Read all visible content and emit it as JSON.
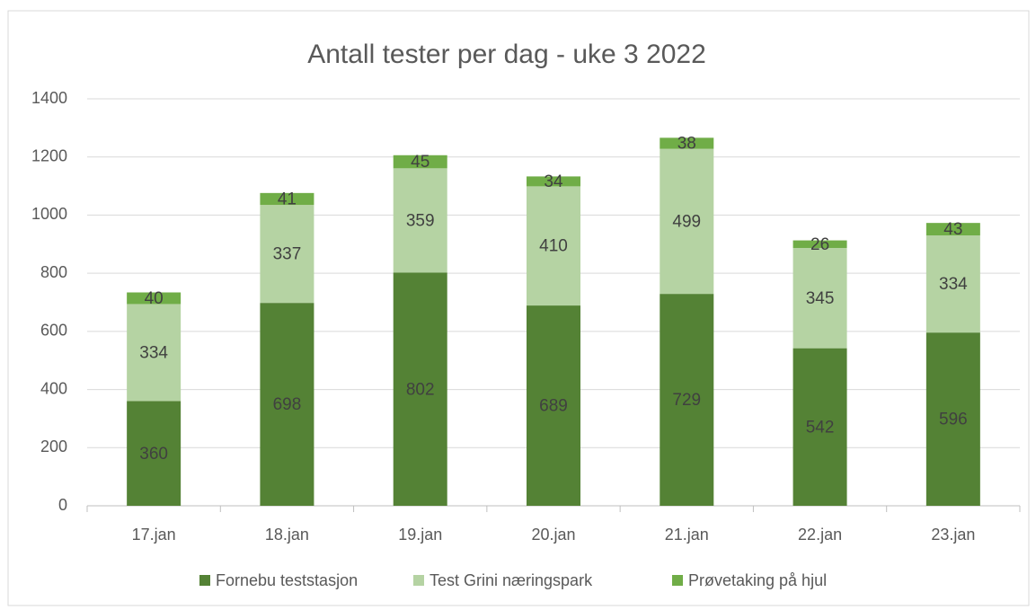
{
  "chart_data": {
    "type": "stacked_bar",
    "title": "Antall tester per dag - uke 3 2022",
    "categories": [
      "17.jan",
      "18.jan",
      "19.jan",
      "20.jan",
      "21.jan",
      "22.jan",
      "23.jan"
    ],
    "series": [
      {
        "name": "Fornebu teststasjon",
        "color": "#548235",
        "values": [
          360,
          698,
          802,
          689,
          729,
          542,
          596
        ]
      },
      {
        "name": "Test Grini næringspark",
        "color": "#b5d3a3",
        "values": [
          334,
          337,
          359,
          410,
          499,
          345,
          334
        ]
      },
      {
        "name": "Prøvetaking på hjul",
        "color": "#70ad47",
        "values": [
          40,
          41,
          45,
          34,
          38,
          26,
          43
        ]
      }
    ],
    "ylim": [
      0,
      1400
    ],
    "yticks": [
      0,
      200,
      400,
      600,
      800,
      1000,
      1200,
      1400
    ],
    "grid": true,
    "legend": "bottom"
  }
}
